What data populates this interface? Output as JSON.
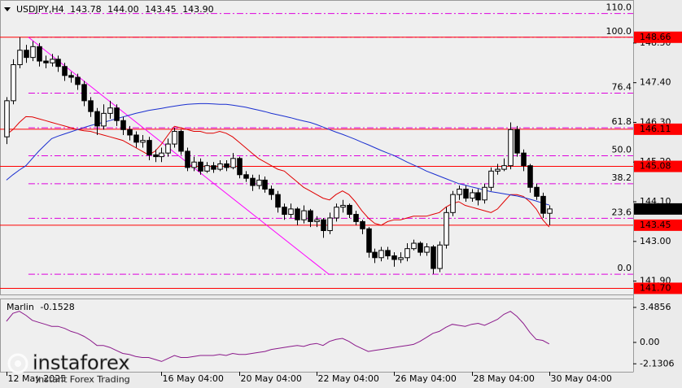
{
  "chart_data": {
    "type": "candlestick",
    "title": "USDJPY,H4",
    "header_values": [
      "143.78",
      "144.00",
      "143.45",
      "143.90"
    ],
    "up_color": "#ffffff",
    "down_color": "#000000",
    "ohlc": [
      [
        145.9,
        147.0,
        145.7,
        146.9
      ],
      [
        146.9,
        148.05,
        146.8,
        147.9
      ],
      [
        147.9,
        148.66,
        147.8,
        148.3
      ],
      [
        148.3,
        148.45,
        147.95,
        148.1
      ],
      [
        148.1,
        148.55,
        148.0,
        148.4
      ],
      [
        148.4,
        148.5,
        147.85,
        148.0
      ],
      [
        148.0,
        148.15,
        147.8,
        147.95
      ],
      [
        147.95,
        148.2,
        147.85,
        148.05
      ],
      [
        148.05,
        148.15,
        147.7,
        147.85
      ],
      [
        147.85,
        147.95,
        147.45,
        147.6
      ],
      [
        147.6,
        147.7,
        147.4,
        147.55
      ],
      [
        147.55,
        147.65,
        147.2,
        147.35
      ],
      [
        147.35,
        147.45,
        146.75,
        146.9
      ],
      [
        146.9,
        147.0,
        146.45,
        146.6
      ],
      [
        146.6,
        146.7,
        145.95,
        146.2
      ],
      [
        146.2,
        146.8,
        146.1,
        146.55
      ],
      [
        146.55,
        146.9,
        146.4,
        146.7
      ],
      [
        146.7,
        146.8,
        146.2,
        146.35
      ],
      [
        146.35,
        146.45,
        145.95,
        146.1
      ],
      [
        146.1,
        146.2,
        145.8,
        145.95
      ],
      [
        145.95,
        146.05,
        145.6,
        145.75
      ],
      [
        145.75,
        145.95,
        145.6,
        145.8
      ],
      [
        145.8,
        145.9,
        145.25,
        145.4
      ],
      [
        145.4,
        145.55,
        145.2,
        145.35
      ],
      [
        145.35,
        145.6,
        145.2,
        145.45
      ],
      [
        145.45,
        145.85,
        145.35,
        145.7
      ],
      [
        145.7,
        146.15,
        145.6,
        146.05
      ],
      [
        146.05,
        146.1,
        145.4,
        145.5
      ],
      [
        145.5,
        145.6,
        144.95,
        145.05
      ],
      [
        145.05,
        145.35,
        144.95,
        145.2
      ],
      [
        145.2,
        145.3,
        144.85,
        144.95
      ],
      [
        144.95,
        145.2,
        144.9,
        145.1
      ],
      [
        145.1,
        145.2,
        144.9,
        145.0
      ],
      [
        145.0,
        145.25,
        144.95,
        145.15
      ],
      [
        145.15,
        145.25,
        144.95,
        145.05
      ],
      [
        145.05,
        145.45,
        145.0,
        145.3
      ],
      [
        145.3,
        145.35,
        144.75,
        144.85
      ],
      [
        144.85,
        144.95,
        144.65,
        144.75
      ],
      [
        144.75,
        144.85,
        144.4,
        144.55
      ],
      [
        144.55,
        144.85,
        144.45,
        144.7
      ],
      [
        144.7,
        144.8,
        144.35,
        144.45
      ],
      [
        144.45,
        144.55,
        144.15,
        144.3
      ],
      [
        144.3,
        144.4,
        143.8,
        143.95
      ],
      [
        143.95,
        144.05,
        143.6,
        143.75
      ],
      [
        143.75,
        144.05,
        143.65,
        143.9
      ],
      [
        143.9,
        143.95,
        143.45,
        143.6
      ],
      [
        143.6,
        144.0,
        143.5,
        143.85
      ],
      [
        143.85,
        143.9,
        143.4,
        143.55
      ],
      [
        143.55,
        143.7,
        143.4,
        143.6
      ],
      [
        143.6,
        143.65,
        143.1,
        143.3
      ],
      [
        143.3,
        143.8,
        143.2,
        143.65
      ],
      [
        143.65,
        144.05,
        143.55,
        143.95
      ],
      [
        143.95,
        144.15,
        143.8,
        144.0
      ],
      [
        144.0,
        144.05,
        143.65,
        143.75
      ],
      [
        143.75,
        143.85,
        143.45,
        143.55
      ],
      [
        143.55,
        143.6,
        143.2,
        143.35
      ],
      [
        143.35,
        143.4,
        142.55,
        142.7
      ],
      [
        142.7,
        142.8,
        142.4,
        142.55
      ],
      [
        142.55,
        142.85,
        142.45,
        142.75
      ],
      [
        142.75,
        142.85,
        142.5,
        142.6
      ],
      [
        142.6,
        142.7,
        142.3,
        142.5
      ],
      [
        142.5,
        142.7,
        142.4,
        142.55
      ],
      [
        142.55,
        142.95,
        142.45,
        142.8
      ],
      [
        142.8,
        143.05,
        142.75,
        142.95
      ],
      [
        142.95,
        143.0,
        142.6,
        142.7
      ],
      [
        142.7,
        142.95,
        142.6,
        142.85
      ],
      [
        142.85,
        142.9,
        142.1,
        142.25
      ],
      [
        142.25,
        143.0,
        142.15,
        142.9
      ],
      [
        142.9,
        143.95,
        142.8,
        143.8
      ],
      [
        143.8,
        144.4,
        143.7,
        144.3
      ],
      [
        144.3,
        144.55,
        144.15,
        144.45
      ],
      [
        144.45,
        144.55,
        144.1,
        144.2
      ],
      [
        144.2,
        144.45,
        144.1,
        144.35
      ],
      [
        144.35,
        144.45,
        144.0,
        144.15
      ],
      [
        144.15,
        144.6,
        144.05,
        144.5
      ],
      [
        144.5,
        145.05,
        144.4,
        144.95
      ],
      [
        144.95,
        145.15,
        144.85,
        145.0
      ],
      [
        145.0,
        145.3,
        144.95,
        145.1
      ],
      [
        145.1,
        146.3,
        145.0,
        146.1
      ],
      [
        146.1,
        146.2,
        145.35,
        145.45
      ],
      [
        145.45,
        145.55,
        144.95,
        145.1
      ],
      [
        145.1,
        145.15,
        144.35,
        144.5
      ],
      [
        144.5,
        144.6,
        144.15,
        144.25
      ],
      [
        144.25,
        144.35,
        143.65,
        143.78
      ],
      [
        143.78,
        144.0,
        143.45,
        143.9
      ]
    ],
    "series": [
      {
        "color": "#e00000",
        "values": [
          145.96,
          146.1,
          146.3,
          146.46,
          146.45,
          146.4,
          146.35,
          146.3,
          146.25,
          146.2,
          146.15,
          146.1,
          146.07,
          146.05,
          146.0,
          145.95,
          145.9,
          145.85,
          145.8,
          145.7,
          145.6,
          145.5,
          145.4,
          145.5,
          145.7,
          145.95,
          146.19,
          146.15,
          146.1,
          146.05,
          146.05,
          146.0,
          146.0,
          146.05,
          146.0,
          145.9,
          145.75,
          145.6,
          145.45,
          145.3,
          145.2,
          145.1,
          145.0,
          144.95,
          144.8,
          144.65,
          144.5,
          144.4,
          144.3,
          144.2,
          144.15,
          144.3,
          144.4,
          144.3,
          144.1,
          143.85,
          143.65,
          143.5,
          143.45,
          143.55,
          143.6,
          143.6,
          143.65,
          143.7,
          143.7,
          143.7,
          143.75,
          143.8,
          143.95,
          144.05,
          144.1,
          144.0,
          143.95,
          143.9,
          143.85,
          143.8,
          143.9,
          144.1,
          144.3,
          144.3,
          144.25,
          144.1,
          143.9,
          143.6,
          143.4
        ]
      },
      {
        "color": "#1a2fd0",
        "values": [
          144.7,
          144.85,
          144.98,
          145.1,
          145.3,
          145.5,
          145.68,
          145.85,
          145.92,
          145.98,
          146.04,
          146.1,
          146.16,
          146.21,
          146.26,
          146.3,
          146.35,
          146.4,
          146.45,
          146.5,
          146.55,
          146.59,
          146.63,
          146.66,
          146.69,
          146.72,
          146.75,
          146.78,
          146.8,
          146.81,
          146.82,
          146.82,
          146.81,
          146.8,
          146.8,
          146.78,
          146.75,
          146.72,
          146.68,
          146.64,
          146.6,
          146.55,
          146.51,
          146.47,
          146.43,
          146.38,
          146.34,
          146.3,
          146.24,
          146.17,
          146.1,
          146.03,
          145.97,
          145.9,
          145.83,
          145.75,
          145.68,
          145.6,
          145.52,
          145.45,
          145.38,
          145.29,
          145.2,
          145.12,
          145.04,
          144.95,
          144.88,
          144.81,
          144.74,
          144.67,
          144.6,
          144.56,
          144.51,
          144.47,
          144.42,
          144.38,
          144.35,
          144.32,
          144.29,
          144.26,
          144.22,
          144.17,
          144.12,
          144.06,
          144.01
        ]
      }
    ],
    "xlim": [
      -1,
      97
    ],
    "xticks": [
      {
        "value": 0,
        "label": "12 May 2025"
      },
      {
        "value": 24,
        "label": "16 May 04:00"
      },
      {
        "value": 36,
        "label": "20 May 04:00"
      },
      {
        "value": 48,
        "label": "22 May 04:00"
      },
      {
        "value": 60,
        "label": "26 May 04:00"
      },
      {
        "value": 72,
        "label": "28 May 04:00"
      },
      {
        "value": 84,
        "label": "30 May 04:00"
      }
    ],
    "ylim": [
      141.53,
      149.67
    ],
    "yticks": [
      {
        "value": 148.5,
        "label": "148.50"
      },
      {
        "value": 147.4,
        "label": "147.40"
      },
      {
        "value": 146.3,
        "label": "146.30"
      },
      {
        "value": 145.2,
        "label": "145.20"
      },
      {
        "value": 144.1,
        "label": "144.10"
      },
      {
        "value": 143.0,
        "label": "143.00"
      },
      {
        "value": 141.9,
        "label": "141.90"
      }
    ],
    "grid": false,
    "levels": [
      148.66,
      146.11,
      145.08,
      143.45,
      {
        "value": 141.7,
        "label": "141.70"
      }
    ],
    "level_color": "#ff0000",
    "last_price": {
      "value": 143.9,
      "label": "143.90"
    },
    "trendline": {
      "x": [
        3.4,
        49.9
      ],
      "y": [
        148.66,
        142.09
      ],
      "color": "#ff00ff"
    },
    "fib": {
      "range": [
        142.09,
        148.66
      ],
      "color": "#dd00dd",
      "levels": [
        {
          "value": 110,
          "label": "110.0"
        },
        {
          "value": 100,
          "label": "100.0"
        },
        76.4,
        61.8,
        {
          "value": 50,
          "label": "50.0"
        },
        38.2,
        23.6,
        {
          "value": 0,
          "label": "0.0"
        }
      ]
    },
    "indicator": {
      "name": "Marlin",
      "color": "#8b1a8b",
      "ylim": [
        -2.92,
        4.29
      ],
      "yticks": [
        3.4856,
        {
          "value": 0,
          "label": "0.00"
        },
        -2.1306
      ],
      "values": [
        2.1,
        2.9,
        3.1,
        2.7,
        2.2,
        2.0,
        1.8,
        1.6,
        1.6,
        1.4,
        1.1,
        0.9,
        0.6,
        0.2,
        -0.3,
        -0.3,
        -0.5,
        -0.8,
        -1.1,
        -1.2,
        -1.4,
        -1.5,
        -1.5,
        -1.7,
        -1.9,
        -1.6,
        -1.3,
        -1.5,
        -1.5,
        -1.4,
        -1.3,
        -1.3,
        -1.3,
        -1.2,
        -1.3,
        -1.1,
        -1.2,
        -1.2,
        -1.1,
        -1.0,
        -0.9,
        -0.7,
        -0.6,
        -0.5,
        -0.4,
        -0.3,
        -0.4,
        -0.2,
        -0.1,
        -0.3,
        0.1,
        0.3,
        0.4,
        0.1,
        -0.3,
        -0.6,
        -0.9,
        -0.8,
        -0.7,
        -0.6,
        -0.5,
        -0.4,
        -0.3,
        -0.2,
        0.1,
        0.5,
        0.9,
        1.1,
        1.5,
        1.8,
        1.7,
        1.6,
        1.8,
        1.9,
        1.7,
        2.0,
        2.3,
        2.8,
        3.1,
        2.6,
        1.9,
        1.0,
        0.3,
        0.2,
        -0.1528
      ]
    },
    "watermark": {
      "brand": "instaforex",
      "tagline": "Instant Forex Trading"
    }
  }
}
